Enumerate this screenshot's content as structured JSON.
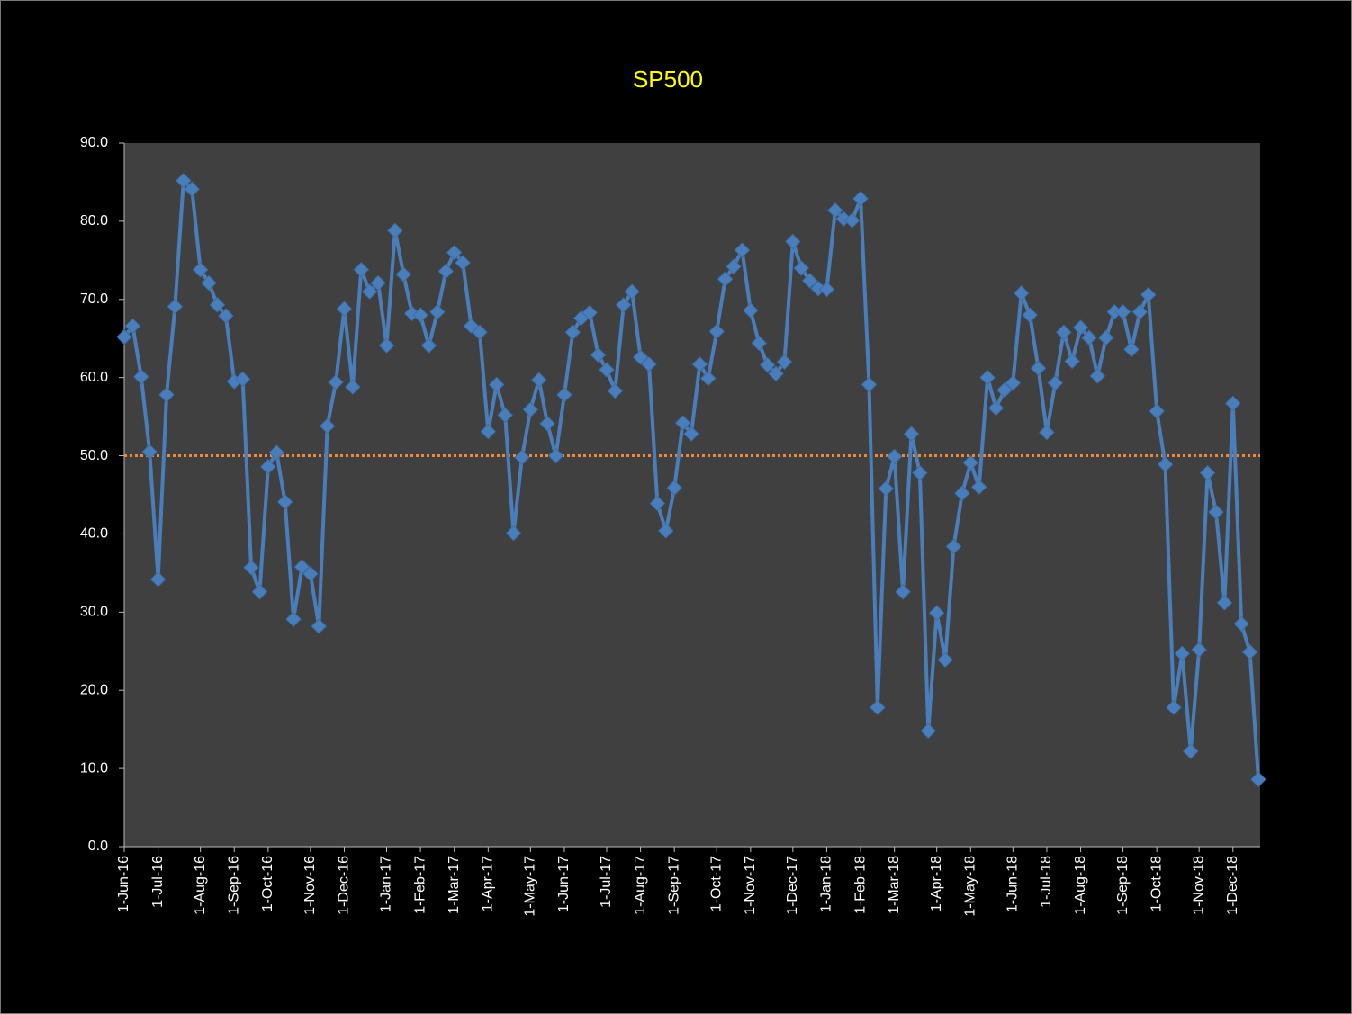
{
  "chart_data": {
    "type": "line",
    "title": "SP500",
    "categories": [
      "1-Jun-16",
      null,
      null,
      null,
      "1-Jul-16",
      null,
      null,
      null,
      null,
      "1-Aug-16",
      null,
      null,
      null,
      "1-Sep-16",
      null,
      null,
      null,
      "1-Oct-16",
      null,
      null,
      null,
      null,
      "1-Nov-16",
      null,
      null,
      null,
      "1-Dec-16",
      null,
      null,
      null,
      null,
      "1-Jan-17",
      null,
      null,
      null,
      "1-Feb-17",
      null,
      null,
      null,
      "1-Mar-17",
      null,
      null,
      null,
      "1-Apr-17",
      null,
      null,
      null,
      null,
      "1-May-17",
      null,
      null,
      null,
      "1-Jun-17",
      null,
      null,
      null,
      null,
      "1-Jul-17",
      null,
      null,
      null,
      "1-Aug-17",
      null,
      null,
      null,
      "1-Sep-17",
      null,
      null,
      null,
      null,
      "1-Oct-17",
      null,
      null,
      null,
      "1-Nov-17",
      null,
      null,
      null,
      null,
      "1-Dec-17",
      null,
      null,
      null,
      "1-Jan-18",
      null,
      null,
      null,
      "1-Feb-18",
      null,
      null,
      null,
      "1-Mar-18",
      null,
      null,
      null,
      null,
      "1-Apr-18",
      null,
      null,
      null,
      "1-May-18",
      null,
      null,
      null,
      null,
      "1-Jun-18",
      null,
      null,
      null,
      "1-Jul-18",
      null,
      null,
      null,
      "1-Aug-18",
      null,
      null,
      null,
      null,
      "1-Sep-18",
      null,
      null,
      null,
      "1-Oct-18",
      null,
      null,
      null,
      null,
      "1-Nov-18",
      null,
      null,
      null,
      "1-Dec-18",
      null,
      null,
      null
    ],
    "series": [
      {
        "color": "#4a7ebb",
        "values": [
          65.2,
          66.6,
          60.1,
          50.5,
          34.2,
          57.8,
          69.1,
          85.2,
          84.1,
          73.8,
          72.1,
          69.3,
          67.9,
          59.5,
          59.8,
          35.7,
          32.6,
          48.6,
          50.4,
          44.1,
          29.1,
          35.8,
          34.9,
          28.2,
          53.8,
          59.4,
          68.8,
          58.8,
          73.8,
          71.0,
          72.1,
          64.1,
          78.8,
          73.2,
          68.2,
          68.0,
          64.1,
          68.4,
          73.6,
          76.0,
          74.7,
          66.6,
          65.8,
          53.1,
          59.1,
          55.2,
          40.1,
          49.8,
          55.9,
          59.7,
          54.1,
          50.0,
          57.8,
          65.8,
          67.6,
          68.3,
          62.9,
          61.0,
          58.3,
          69.3,
          71.0,
          62.6,
          61.7,
          43.9,
          40.4,
          45.9,
          54.2,
          52.8,
          61.7,
          59.9,
          65.9,
          72.6,
          74.2,
          76.3,
          68.6,
          64.4,
          61.6,
          60.5,
          62.0,
          77.4,
          74.0,
          72.4,
          71.4,
          71.3,
          81.4,
          80.3,
          80.1,
          82.9,
          59.1,
          17.8,
          45.8,
          49.9,
          32.6,
          52.8,
          47.8,
          14.8,
          29.9,
          23.9,
          38.4,
          45.2,
          49.1,
          46.0,
          60.0,
          56.1,
          58.4,
          59.3,
          70.8,
          68.0,
          61.2,
          53.0,
          59.3,
          65.8,
          62.1,
          66.4,
          65.1,
          60.2,
          65.1,
          68.4,
          68.4,
          63.6,
          68.4,
          70.6,
          55.7,
          48.9,
          17.8,
          24.7,
          12.2,
          25.2,
          47.8,
          42.8,
          31.2,
          56.7,
          28.5,
          24.9,
          8.6
        ]
      }
    ],
    "reference_line": {
      "value": 50,
      "color": "#f0883a"
    },
    "ylim": [
      0,
      90
    ],
    "yticks": [
      {
        "value": 0,
        "label": "0.0"
      },
      {
        "value": 10,
        "label": "10.0"
      },
      {
        "value": 20,
        "label": "20.0"
      },
      {
        "value": 30,
        "label": "30.0"
      },
      {
        "value": 40,
        "label": "40.0"
      },
      {
        "value": 50,
        "label": "50.0"
      },
      {
        "value": 60,
        "label": "60.0"
      },
      {
        "value": 70,
        "label": "70.0"
      },
      {
        "value": 80,
        "label": "80.0"
      },
      {
        "value": 90,
        "label": "90.0"
      }
    ],
    "grid": false
  }
}
